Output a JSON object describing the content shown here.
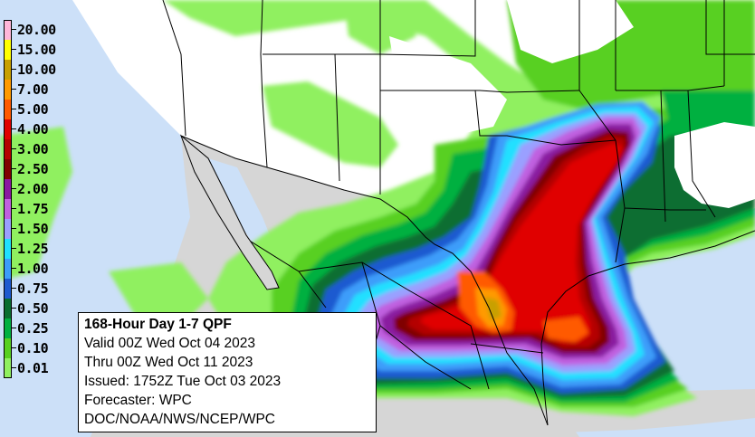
{
  "info_box": {
    "title": "168-Hour Day 1-7 QPF",
    "valid": "Valid 00Z Wed Oct 04 2023",
    "thru": "Thru 00Z Wed Oct 11 2023",
    "issued": "Issued: 1752Z Tue Oct 03 2023",
    "forecaster": "Forecaster: WPC",
    "source": "DOC/NOAA/NWS/NCEP/WPC"
  },
  "legend": [
    {
      "label": "20.00",
      "color": "#ffb6d9"
    },
    {
      "label": "15.00",
      "color": "#ffff00"
    },
    {
      "label": "10.00",
      "color": "#c8a000"
    },
    {
      "label": "7.00",
      "color": "#ff9a00"
    },
    {
      "label": "5.00",
      "color": "#ff5a00"
    },
    {
      "label": "4.00",
      "color": "#e00000"
    },
    {
      "label": "3.00",
      "color": "#b40000"
    },
    {
      "label": "2.50",
      "color": "#800000"
    },
    {
      "label": "2.00",
      "color": "#8a1aa0"
    },
    {
      "label": "1.75",
      "color": "#c060e0"
    },
    {
      "label": "1.50",
      "color": "#9aa0ff"
    },
    {
      "label": "1.25",
      "color": "#20e0ff"
    },
    {
      "label": "1.00",
      "color": "#3c9dfa"
    },
    {
      "label": "0.75",
      "color": "#1e5ad0"
    },
    {
      "label": "0.50",
      "color": "#0a6e30"
    },
    {
      "label": "0.25",
      "color": "#00b040"
    },
    {
      "label": "0.10",
      "color": "#58d020"
    },
    {
      "label": "0.01",
      "color": "#90f060"
    }
  ],
  "colors": {
    "ocean": "#cce0f8",
    "mexico_land": "#d6d6d6",
    "us_land": "#ffffff",
    "boundary": "#000000"
  }
}
